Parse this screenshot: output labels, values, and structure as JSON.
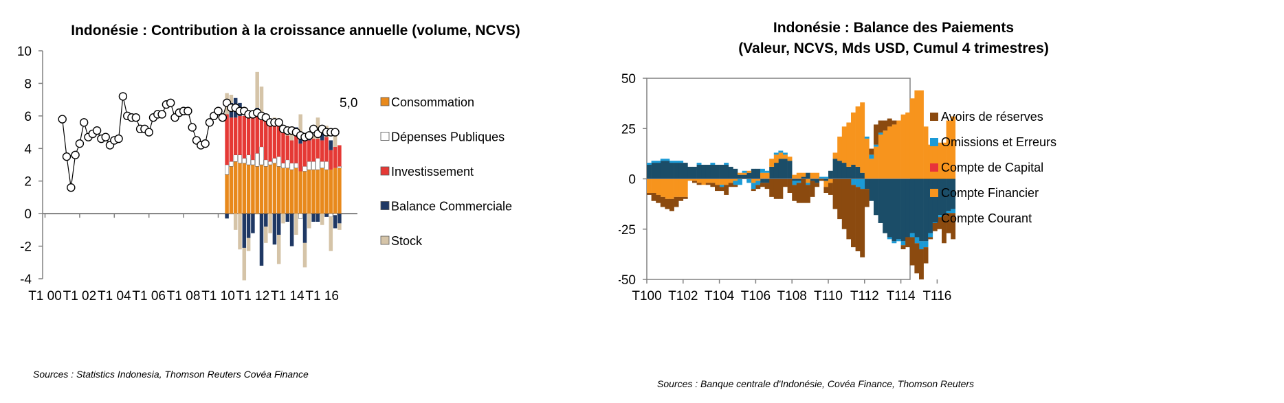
{
  "chart_data": [
    {
      "type": "bar",
      "title": "Indonésie : Contribution à la croissance annuelle (volume, NCVS)",
      "source": "Sources :  Statistics Indonesia, Thomson Reuters Covéa Finance",
      "ylim": [
        -4,
        10
      ],
      "y_ticks": [
        "10",
        "8",
        "6",
        "4",
        "2",
        "0",
        "-2",
        "-4"
      ],
      "x_ticks": [
        "T1 00",
        "T1 02",
        "T1 04",
        "T1 06",
        "T1 08",
        "T1 10",
        "T1 12",
        "T1 14",
        "T1 16"
      ],
      "last_value_label": "5,0",
      "legend": [
        {
          "label": "Consommation",
          "color": "#E8891C"
        },
        {
          "label": "Dépenses Publiques",
          "color": "#FFFFFF"
        },
        {
          "label": "Investissement",
          "color": "#E53935"
        },
        {
          "label": "Balance Commerciale",
          "color": "#1F3864"
        },
        {
          "label": "Stock",
          "color": "#D5C4A8"
        }
      ],
      "gdp_line": {
        "name": "",
        "start": "T1 01",
        "values": [
          5.8,
          3.5,
          1.6,
          3.6,
          4.3,
          5.6,
          4.7,
          4.9,
          5.1,
          4.6,
          4.7,
          4.2,
          4.5,
          4.6,
          7.2,
          6.0,
          5.9,
          5.9,
          5.2,
          5.2,
          5.0,
          5.9,
          6.1,
          6.1,
          6.7,
          6.8,
          5.9,
          6.2,
          6.3,
          6.3,
          5.3,
          4.5,
          4.2,
          4.3,
          5.6,
          6.0,
          6.3,
          5.9,
          6.8,
          6.5,
          6.5,
          6.3,
          6.3,
          6.1,
          6.1,
          6.2,
          6.0,
          5.9,
          5.6,
          5.6,
          5.6,
          5.2,
          5.1,
          5.1,
          5.0,
          4.8,
          4.7,
          4.8,
          5.2,
          4.9,
          5.2,
          5.0,
          5.0,
          5.0
        ]
      },
      "bars": {
        "start": "T3 10",
        "categories": [
          "T3 10",
          "T4 10",
          "T1 11",
          "T2 11",
          "T3 11",
          "T4 11",
          "T1 12",
          "T2 12",
          "T3 12",
          "T4 12",
          "T1 13",
          "T2 13",
          "T3 13",
          "T4 13",
          "T1 14",
          "T2 14",
          "T3 14",
          "T4 14",
          "T1 15",
          "T2 15",
          "T3 15",
          "T4 15",
          "T1 16",
          "T2 16",
          "T3 16",
          "T4 16",
          "T1 17"
        ],
        "series": [
          {
            "name": "Consommation",
            "values": [
              2.4,
              2.9,
              3.2,
              3.1,
              3.1,
              3.0,
              3.0,
              2.9,
              3.0,
              2.9,
              3.0,
              3.1,
              2.9,
              2.8,
              2.8,
              2.7,
              2.8,
              2.6,
              2.6,
              2.7,
              2.7,
              2.7,
              2.8,
              2.7,
              2.7,
              2.8,
              2.8
            ]
          },
          {
            "name": "Dépenses Publiques",
            "values": [
              0.6,
              0.3,
              0.4,
              0.5,
              0.3,
              0.6,
              0.3,
              0.8,
              1.1,
              0.4,
              0.2,
              0.3,
              0.6,
              0.3,
              0.5,
              0.4,
              0.3,
              -0.3,
              0.3,
              0.5,
              0.5,
              0.7,
              0.4,
              0.5,
              -0.2,
              -0.1,
              0.1
            ]
          },
          {
            "name": "Investissement",
            "values": [
              3.1,
              2.7,
              2.3,
              2.4,
              2.6,
              2.6,
              2.7,
              2.3,
              2.1,
              2.4,
              2.2,
              2.0,
              1.9,
              1.9,
              1.5,
              1.4,
              1.7,
              1.7,
              1.6,
              1.3,
              1.4,
              1.2,
              1.3,
              1.5,
              1.2,
              1.3,
              1.3
            ]
          },
          {
            "name": "Balance Commerciale",
            "values": [
              -0.3,
              0.9,
              1.2,
              0.8,
              -2.1,
              -1.5,
              -1.2,
              0.5,
              -3.2,
              -0.8,
              0.2,
              -1.9,
              -1.3,
              0.2,
              -0.5,
              -2.0,
              0.5,
              0.4,
              -1.8,
              0.4,
              -0.5,
              -0.5,
              0.9,
              -0.2,
              0.6,
              -0.8,
              -0.6
            ]
          },
          {
            "name": "Stock",
            "values": [
              1.3,
              0.5,
              -1.0,
              -2.2,
              -2.0,
              -0.8,
              0.3,
              2.2,
              1.6,
              -1.0,
              -1.2,
              0.5,
              -1.8,
              -0.6,
              0.5,
              0.7,
              -1.3,
              1.4,
              -1.5,
              -0.9,
              0.2,
              1.3,
              -0.7,
              0.7,
              -2.1,
              1.0,
              -0.4
            ]
          }
        ]
      }
    },
    {
      "type": "area",
      "title": "Indonésie : Balance des Paiements",
      "subtitle": "(Valeur, NCVS, Mds USD, Cumul 4 trimestres)",
      "source": "Sources : Banque centrale d'Indonésie, Covéa Finance, Thomson Reuters",
      "ylim": [
        -50,
        50
      ],
      "y_ticks": [
        "50",
        "25",
        "0",
        "-25",
        "-50"
      ],
      "x_ticks": [
        "T100",
        "T102",
        "T104",
        "T106",
        "T108",
        "T110",
        "T112",
        "T114",
        "T116"
      ],
      "legend": [
        {
          "label": "Avoirs de réserves",
          "color": "#8B4A0F"
        },
        {
          "label": "Omissions et Erreurs",
          "color": "#1B9AD6"
        },
        {
          "label": "Compte de Capital",
          "color": "#E8333A"
        },
        {
          "label": "Compte Financier",
          "color": "#F7941D"
        },
        {
          "label": "Compte Courant",
          "color": "#1B4D68"
        }
      ],
      "x_start": "T1 00",
      "series": [
        {
          "name": "Compte Courant",
          "values": [
            7,
            8,
            8,
            9,
            9,
            8,
            8,
            8,
            8,
            6,
            6,
            7,
            7,
            7,
            7,
            7,
            7,
            7,
            6,
            5,
            2,
            2,
            3,
            5,
            5,
            -2,
            -2,
            6,
            8,
            10,
            10,
            9,
            -1,
            -1,
            1,
            3,
            -1,
            -2,
            0,
            -1,
            4,
            10,
            9,
            8,
            6,
            7,
            6,
            3,
            -5,
            -11,
            -18,
            -22,
            -27,
            -29,
            -31,
            -30,
            -31,
            -29,
            -27,
            -29,
            -31,
            -31,
            -27,
            -21,
            -18,
            -18,
            -16,
            -15
          ]
        },
        {
          "name": "Compte Financier",
          "values": [
            -7,
            -7,
            -8,
            -9,
            -10,
            -10,
            -9,
            -9,
            -9,
            -1,
            -1,
            -2,
            -3,
            -2,
            -2,
            -3,
            -3,
            -3,
            -2,
            -1,
            1,
            1,
            1,
            -2,
            -1,
            3,
            3,
            4,
            4,
            3,
            2,
            2,
            2,
            3,
            2,
            -2,
            3,
            3,
            0,
            -3,
            -2,
            3,
            12,
            18,
            22,
            26,
            30,
            35,
            20,
            10,
            16,
            22,
            24,
            26,
            27,
            29,
            32,
            33,
            40,
            44,
            44,
            26,
            17,
            18,
            18,
            18,
            29,
            31
          ]
        },
        {
          "name": "Compte de Capital",
          "values": [
            0,
            0,
            0,
            0,
            0,
            0,
            0,
            0,
            0,
            0,
            0,
            0,
            0,
            0,
            0,
            0,
            0,
            0,
            0,
            0,
            0,
            0,
            0,
            0,
            0,
            0,
            0,
            0,
            0,
            0,
            0,
            0,
            0,
            0,
            0,
            0,
            0,
            0,
            0,
            0,
            0,
            0,
            0,
            0,
            0,
            0,
            0,
            0,
            0,
            0,
            0,
            0,
            0,
            0,
            0,
            0,
            0,
            0,
            0,
            0,
            0,
            0,
            0,
            0,
            0,
            0,
            0,
            0
          ]
        },
        {
          "name": "Omissions et Erreurs",
          "values": [
            1,
            1,
            1,
            1,
            1,
            1,
            1,
            1,
            0,
            0,
            0,
            1,
            0,
            0,
            1,
            0,
            -1,
            1,
            0,
            -2,
            -3,
            1,
            -2,
            -3,
            -2,
            2,
            1,
            0,
            1,
            1,
            1,
            0,
            -2,
            -1,
            0,
            -1,
            0,
            0,
            1,
            1,
            0,
            0,
            0,
            0,
            0,
            -3,
            -4,
            -5,
            1,
            2,
            1,
            1,
            0,
            -1,
            -1,
            -1,
            -2,
            0,
            -2,
            -3,
            -4,
            -3,
            -2,
            -1,
            -1,
            0,
            -1,
            -2
          ]
        },
        {
          "name": "Avoirs de réserves",
          "values": [
            -1,
            -4,
            -4,
            -5,
            -5,
            -6,
            -5,
            -2,
            -1,
            0,
            -1,
            -1,
            0,
            -1,
            -2,
            -3,
            -2,
            -5,
            -2,
            -1,
            0,
            0,
            0,
            -1,
            -2,
            -2,
            -3,
            -9,
            -10,
            -10,
            -4,
            -7,
            -8,
            -10,
            -12,
            -9,
            -8,
            -2,
            -1,
            -3,
            -6,
            -15,
            -20,
            -25,
            -30,
            -31,
            -32,
            -34,
            -9,
            3,
            10,
            6,
            5,
            4,
            2,
            0,
            -2,
            -5,
            -14,
            -15,
            -15,
            -8,
            -1,
            -4,
            -6,
            -14,
            -10,
            -13
          ]
        }
      ]
    }
  ]
}
